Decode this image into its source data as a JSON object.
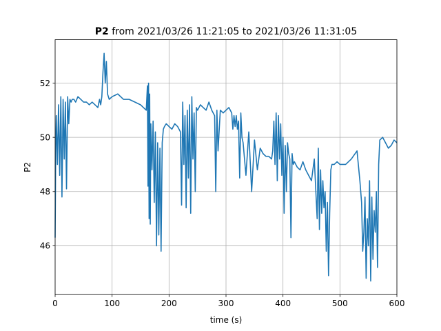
{
  "chart_data": {
    "type": "line",
    "title_bold": "P2",
    "title_rest": " from 2021/03/26 11:21:05 to 2021/03/26 11:31:05",
    "xlabel": "time (s)",
    "ylabel": "P2",
    "xlim": [
      0,
      600
    ],
    "ylim": [
      44.2,
      53.6
    ],
    "xticks": [
      0,
      100,
      200,
      300,
      400,
      500,
      600
    ],
    "yticks": [
      46,
      48,
      50,
      52
    ],
    "grid": true,
    "legend": "none",
    "series": [
      {
        "color": "#1f77b4",
        "x": [
          0,
          1,
          2,
          4,
          6,
          8,
          10,
          12,
          14,
          16,
          18,
          20,
          22,
          24,
          26,
          28,
          30,
          33,
          36,
          40,
          45,
          50,
          55,
          60,
          65,
          70,
          75,
          78,
          80,
          82,
          84,
          86,
          88,
          90,
          92,
          95,
          100,
          110,
          120,
          130,
          140,
          150,
          155,
          160,
          162,
          163,
          164,
          165,
          166,
          167,
          168,
          170,
          172,
          174,
          176,
          178,
          180,
          182,
          184,
          186,
          188,
          190,
          192,
          195,
          200,
          205,
          210,
          215,
          220,
          222,
          224,
          226,
          228,
          230,
          232,
          234,
          236,
          238,
          240,
          242,
          244,
          246,
          248,
          250,
          255,
          260,
          265,
          270,
          275,
          280,
          282,
          284,
          286,
          290,
          295,
          300,
          305,
          310,
          312,
          314,
          316,
          318,
          320,
          322,
          324,
          326,
          328,
          330,
          335,
          340,
          345,
          350,
          355,
          360,
          365,
          370,
          375,
          380,
          382,
          384,
          386,
          388,
          390,
          392,
          394,
          396,
          398,
          400,
          402,
          404,
          406,
          408,
          410,
          412,
          414,
          416,
          418,
          420,
          425,
          430,
          435,
          440,
          445,
          450,
          455,
          460,
          462,
          464,
          466,
          468,
          470,
          472,
          474,
          476,
          478,
          480,
          482,
          484,
          486,
          488,
          490,
          495,
          500,
          510,
          520,
          530,
          535,
          538,
          540,
          542,
          544,
          546,
          548,
          550,
          552,
          554,
          556,
          558,
          560,
          562,
          564,
          566,
          568,
          570,
          575,
          580,
          585,
          590,
          595,
          600
        ],
        "y": [
          46.3,
          49.5,
          50.8,
          49.0,
          51.2,
          48.6,
          51.5,
          47.8,
          51.4,
          49.2,
          51.3,
          48.1,
          51.5,
          50.5,
          51.4,
          51.3,
          51.4,
          51.4,
          51.3,
          51.5,
          51.4,
          51.3,
          51.3,
          51.2,
          51.3,
          51.2,
          51.1,
          51.4,
          51.2,
          51.5,
          52.4,
          53.1,
          52.0,
          52.8,
          51.6,
          51.4,
          51.5,
          51.6,
          51.4,
          51.4,
          51.3,
          51.2,
          51.1,
          51.0,
          51.9,
          48.2,
          52.0,
          47.0,
          51.6,
          46.8,
          50.5,
          48.8,
          50.6,
          47.6,
          50.2,
          46.0,
          49.8,
          46.4,
          49.6,
          45.8,
          49.8,
          50.3,
          50.4,
          50.5,
          50.4,
          50.3,
          50.5,
          50.4,
          50.2,
          47.5,
          51.3,
          49.0,
          50.8,
          47.4,
          51.0,
          48.5,
          51.2,
          47.2,
          51.5,
          49.2,
          50.9,
          48.0,
          51.1,
          51.0,
          51.2,
          51.1,
          51.0,
          51.3,
          51.0,
          50.8,
          48.0,
          51.0,
          49.5,
          51.0,
          50.9,
          51.0,
          51.1,
          50.9,
          50.3,
          50.8,
          50.4,
          50.8,
          50.3,
          50.6,
          48.5,
          50.9,
          50.0,
          49.8,
          48.6,
          50.2,
          48.0,
          49.9,
          48.8,
          49.6,
          49.4,
          49.3,
          49.3,
          49.2,
          49.5,
          50.6,
          49.0,
          50.9,
          48.4,
          50.8,
          49.2,
          50.5,
          48.6,
          50.0,
          47.2,
          49.7,
          48.0,
          49.8,
          49.4,
          49.2,
          46.3,
          49.4,
          49.0,
          49.1,
          48.9,
          48.8,
          49.1,
          48.8,
          48.6,
          48.4,
          49.2,
          47.0,
          49.6,
          46.6,
          48.8,
          47.2,
          48.4,
          47.4,
          48.0,
          45.8,
          47.6,
          44.9,
          47.2,
          48.8,
          49.0,
          49.0,
          49.0,
          49.1,
          49.0,
          49.0,
          49.2,
          49.5,
          48.4,
          47.6,
          45.8,
          46.5,
          47.8,
          44.8,
          47.0,
          46.0,
          48.4,
          44.7,
          47.8,
          45.5,
          47.3,
          46.5,
          48.0,
          45.2,
          49.0,
          49.9,
          50.0,
          49.8,
          49.6,
          49.7,
          49.9,
          49.8
        ]
      }
    ]
  }
}
